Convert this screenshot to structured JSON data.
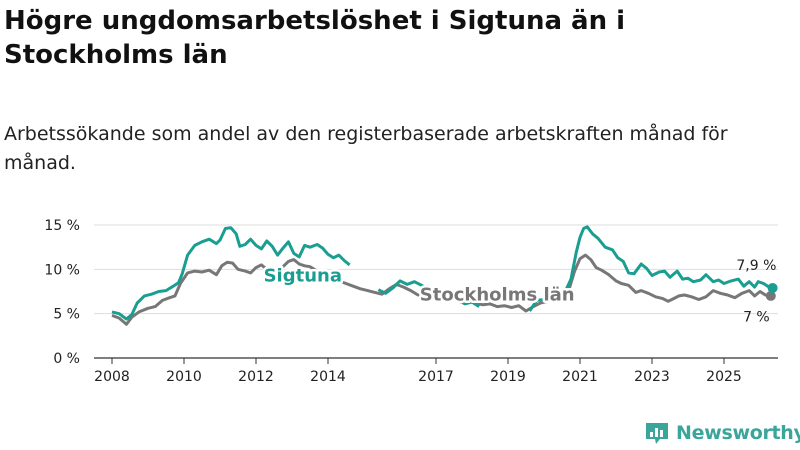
{
  "title": "Högre ungdomsarbetslöshet i Sigtuna än i Stockholms län",
  "subtitle": "Arbetssökande som andel av den registerbaserade arbetskraften månad för månad.",
  "brand": {
    "name": "Newsworthy"
  },
  "colors": {
    "sigtuna": "#1a9e91",
    "stockholm": "#777777",
    "grid": "#dddddd",
    "axis": "#333333"
  },
  "chart_data": {
    "type": "line",
    "xlim": [
      2007.5,
      2026.5
    ],
    "ylim": [
      0,
      15
    ],
    "y_ticks": [
      {
        "value": 0,
        "label": "0 %"
      },
      {
        "value": 5,
        "label": "5 %"
      },
      {
        "value": 10,
        "label": "10 %"
      },
      {
        "value": 15,
        "label": "15 %"
      }
    ],
    "x_ticks": [
      {
        "value": 2008,
        "label": "2008"
      },
      {
        "value": 2010,
        "label": "2010"
      },
      {
        "value": 2012,
        "label": "2012"
      },
      {
        "value": 2014,
        "label": "2014"
      },
      {
        "value": 2017,
        "label": "2017"
      },
      {
        "value": 2019,
        "label": "2019"
      },
      {
        "value": 2021,
        "label": "2021"
      },
      {
        "value": 2023,
        "label": "2023"
      },
      {
        "value": 2025,
        "label": "2025"
      }
    ],
    "series": [
      {
        "name": "Sigtuna",
        "label": "Sigtuna",
        "end_label": "7,9 %",
        "label_at": [
          2013.3,
          8.6
        ],
        "end_label_at": [
          2025.9,
          9.9
        ],
        "points": [
          [
            2008.0,
            5.2
          ],
          [
            2008.2,
            5.0
          ],
          [
            2008.4,
            4.4
          ],
          [
            2008.55,
            4.9
          ],
          [
            2008.7,
            6.2
          ],
          [
            2008.9,
            7.0
          ],
          [
            2009.1,
            7.2
          ],
          [
            2009.3,
            7.5
          ],
          [
            2009.5,
            7.6
          ],
          [
            2009.7,
            8.1
          ],
          [
            2009.85,
            8.5
          ],
          [
            2009.95,
            9.5
          ],
          [
            2010.1,
            11.6
          ],
          [
            2010.3,
            12.7
          ],
          [
            2010.5,
            13.1
          ],
          [
            2010.7,
            13.4
          ],
          [
            2010.9,
            12.9
          ],
          [
            2011.0,
            13.3
          ],
          [
            2011.15,
            14.6
          ],
          [
            2011.3,
            14.7
          ],
          [
            2011.45,
            14.0
          ],
          [
            2011.55,
            12.6
          ],
          [
            2011.7,
            12.8
          ],
          [
            2011.85,
            13.4
          ],
          [
            2012.0,
            12.7
          ],
          [
            2012.15,
            12.3
          ],
          [
            2012.3,
            13.2
          ],
          [
            2012.45,
            12.6
          ],
          [
            2012.6,
            11.6
          ],
          [
            2012.75,
            12.4
          ],
          [
            2012.9,
            13.1
          ],
          [
            2013.05,
            11.8
          ],
          [
            2013.2,
            11.4
          ],
          [
            2013.35,
            12.7
          ],
          [
            2013.5,
            12.5
          ],
          [
            2013.7,
            12.8
          ],
          [
            2013.85,
            12.4
          ],
          [
            2014.0,
            11.7
          ],
          [
            2014.15,
            11.3
          ],
          [
            2014.3,
            11.6
          ],
          [
            2014.45,
            11.0
          ],
          [
            2014.6,
            10.5
          ]
        ],
        "points_2": [
          [
            2015.4,
            7.7
          ],
          [
            2015.6,
            7.3
          ],
          [
            2015.8,
            7.9
          ],
          [
            2016.0,
            8.7
          ],
          [
            2016.2,
            8.3
          ],
          [
            2016.4,
            8.6
          ],
          [
            2016.6,
            8.2
          ],
          [
            2016.8,
            7.8
          ],
          [
            2017.0,
            7.2
          ],
          [
            2017.2,
            7.6
          ],
          [
            2017.4,
            6.8
          ],
          [
            2017.6,
            6.6
          ],
          [
            2017.8,
            6.1
          ],
          [
            2018.0,
            6.3
          ],
          [
            2018.2,
            5.8
          ]
        ],
        "points_3": [
          [
            2019.6,
            5.3
          ],
          [
            2019.8,
            6.5
          ],
          [
            2020.0,
            6.6
          ],
          [
            2020.2,
            7.5
          ],
          [
            2020.4,
            7.4
          ],
          [
            2020.6,
            7.6
          ],
          [
            2020.75,
            8.9
          ],
          [
            2020.9,
            12.0
          ],
          [
            2021.0,
            13.6
          ],
          [
            2021.1,
            14.6
          ],
          [
            2021.2,
            14.8
          ],
          [
            2021.35,
            14.0
          ],
          [
            2021.5,
            13.5
          ],
          [
            2021.7,
            12.5
          ],
          [
            2021.9,
            12.2
          ],
          [
            2022.05,
            11.3
          ],
          [
            2022.2,
            10.9
          ],
          [
            2022.35,
            9.6
          ],
          [
            2022.5,
            9.5
          ],
          [
            2022.7,
            10.6
          ],
          [
            2022.85,
            10.1
          ],
          [
            2023.0,
            9.3
          ],
          [
            2023.2,
            9.7
          ],
          [
            2023.35,
            9.8
          ],
          [
            2023.5,
            9.1
          ],
          [
            2023.7,
            9.8
          ],
          [
            2023.85,
            8.9
          ],
          [
            2024.0,
            9.0
          ],
          [
            2024.15,
            8.6
          ],
          [
            2024.35,
            8.8
          ],
          [
            2024.5,
            9.4
          ],
          [
            2024.7,
            8.6
          ],
          [
            2024.85,
            8.8
          ],
          [
            2025.0,
            8.4
          ],
          [
            2025.2,
            8.7
          ],
          [
            2025.4,
            8.9
          ],
          [
            2025.55,
            8.1
          ],
          [
            2025.7,
            8.6
          ],
          [
            2025.85,
            8.0
          ],
          [
            2025.95,
            8.6
          ],
          [
            2026.1,
            8.4
          ],
          [
            2026.25,
            8.0
          ],
          [
            2026.35,
            7.9
          ]
        ]
      },
      {
        "name": "Stockholms län",
        "label": "Stockholms län",
        "end_label": "7 %",
        "label_at": [
          2018.7,
          6.5
        ],
        "end_label_at": [
          2025.9,
          4.1
        ],
        "points": [
          [
            2008.0,
            4.8
          ],
          [
            2008.2,
            4.5
          ],
          [
            2008.4,
            3.8
          ],
          [
            2008.55,
            4.6
          ],
          [
            2008.75,
            5.2
          ],
          [
            2009.0,
            5.6
          ],
          [
            2009.2,
            5.8
          ],
          [
            2009.4,
            6.5
          ],
          [
            2009.6,
            6.8
          ],
          [
            2009.75,
            7.0
          ],
          [
            2009.9,
            8.4
          ],
          [
            2010.1,
            9.6
          ],
          [
            2010.3,
            9.8
          ],
          [
            2010.5,
            9.7
          ],
          [
            2010.7,
            9.9
          ],
          [
            2010.9,
            9.4
          ],
          [
            2011.05,
            10.4
          ],
          [
            2011.2,
            10.8
          ],
          [
            2011.35,
            10.7
          ],
          [
            2011.5,
            10.0
          ],
          [
            2011.7,
            9.8
          ],
          [
            2011.85,
            9.6
          ],
          [
            2012.0,
            10.2
          ],
          [
            2012.15,
            10.5
          ],
          [
            2012.3,
            10.0
          ],
          [
            2012.45,
            9.4
          ],
          [
            2012.6,
            9.5
          ],
          [
            2012.75,
            10.3
          ],
          [
            2012.9,
            10.9
          ],
          [
            2013.05,
            11.1
          ],
          [
            2013.2,
            10.6
          ],
          [
            2013.35,
            10.4
          ],
          [
            2013.5,
            10.3
          ],
          [
            2013.7,
            9.8
          ],
          [
            2013.9,
            9.7
          ],
          [
            2014.1,
            9.2
          ],
          [
            2014.3,
            8.7
          ],
          [
            2014.5,
            8.4
          ],
          [
            2014.7,
            8.1
          ],
          [
            2014.9,
            7.8
          ],
          [
            2015.1,
            7.6
          ],
          [
            2015.3,
            7.4
          ],
          [
            2015.5,
            7.2
          ],
          [
            2015.7,
            7.8
          ],
          [
            2015.9,
            8.3
          ],
          [
            2016.1,
            8.0
          ],
          [
            2016.3,
            7.6
          ],
          [
            2016.5,
            7.1
          ],
          [
            2016.7,
            7.0
          ],
          [
            2016.9,
            7.3
          ],
          [
            2017.1,
            7.4
          ],
          [
            2017.3,
            6.9
          ],
          [
            2017.5,
            6.7
          ],
          [
            2017.7,
            6.3
          ],
          [
            2017.9,
            6.4
          ],
          [
            2018.1,
            6.2
          ],
          [
            2018.3,
            6.0
          ],
          [
            2018.5,
            6.1
          ],
          [
            2018.7,
            5.8
          ],
          [
            2018.9,
            5.9
          ],
          [
            2019.1,
            5.7
          ],
          [
            2019.3,
            5.9
          ],
          [
            2019.5,
            5.3
          ],
          [
            2019.7,
            5.8
          ],
          [
            2019.9,
            6.2
          ],
          [
            2020.1,
            6.4
          ],
          [
            2020.3,
            6.9
          ],
          [
            2020.5,
            7.3
          ],
          [
            2020.7,
            7.8
          ],
          [
            2020.85,
            9.8
          ],
          [
            2021.0,
            11.2
          ],
          [
            2021.15,
            11.6
          ],
          [
            2021.3,
            11.1
          ],
          [
            2021.45,
            10.2
          ],
          [
            2021.6,
            9.9
          ],
          [
            2021.8,
            9.4
          ],
          [
            2022.0,
            8.7
          ],
          [
            2022.15,
            8.4
          ],
          [
            2022.35,
            8.2
          ],
          [
            2022.55,
            7.4
          ],
          [
            2022.7,
            7.6
          ],
          [
            2022.9,
            7.3
          ],
          [
            2023.1,
            6.9
          ],
          [
            2023.3,
            6.7
          ],
          [
            2023.45,
            6.4
          ],
          [
            2023.6,
            6.7
          ],
          [
            2023.75,
            7.0
          ],
          [
            2023.9,
            7.1
          ],
          [
            2024.1,
            6.9
          ],
          [
            2024.3,
            6.6
          ],
          [
            2024.5,
            6.9
          ],
          [
            2024.7,
            7.6
          ],
          [
            2024.9,
            7.3
          ],
          [
            2025.1,
            7.1
          ],
          [
            2025.3,
            6.8
          ],
          [
            2025.5,
            7.3
          ],
          [
            2025.7,
            7.6
          ],
          [
            2025.85,
            7.0
          ],
          [
            2026.0,
            7.5
          ],
          [
            2026.15,
            7.1
          ],
          [
            2026.3,
            7.0
          ]
        ]
      }
    ]
  }
}
